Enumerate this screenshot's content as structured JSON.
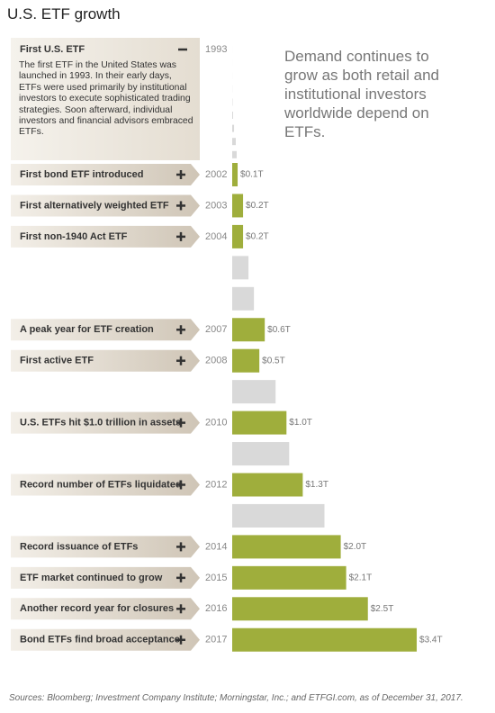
{
  "chart_data": {
    "type": "bar",
    "title": "U.S. ETF growth",
    "headline": "Demand continues to grow as both retail and institutional investors worldwide depend on ETFs.",
    "source": "Sources: Bloomberg; Investment Company Institute; Morningstar, Inc.; and ETFGI.com, as of December 31, 2017.",
    "categories": [
      "1993",
      null,
      null,
      null,
      null,
      null,
      null,
      null,
      null,
      "2002",
      "2003",
      "2004",
      null,
      null,
      "2007",
      "2008",
      null,
      "2010",
      null,
      "2012",
      null,
      "2014",
      "2015",
      "2016",
      "2017"
    ],
    "values": [
      0.0008,
      0.0004,
      0.001,
      0.002,
      0.007,
      0.016,
      0.034,
      0.066,
      0.083,
      0.1,
      0.2,
      0.2,
      0.3,
      0.4,
      0.6,
      0.5,
      0.8,
      1.0,
      1.05,
      1.3,
      1.7,
      2.0,
      2.1,
      2.5,
      3.4
    ],
    "value_labels": [
      null,
      null,
      null,
      null,
      null,
      null,
      null,
      null,
      null,
      "$0.1T",
      "$0.2T",
      "$0.2T",
      null,
      null,
      "$0.6T",
      "$0.5T",
      null,
      "$1.0T",
      null,
      "$1.3T",
      null,
      "$2.0T",
      "$2.1T",
      "$2.5T",
      "$3.4T"
    ],
    "colors": [
      "#d9d9d9",
      "#d9d9d9",
      "#d9d9d9",
      "#d9d9d9",
      "#d9d9d9",
      "#d9d9d9",
      "#d9d9d9",
      "#d9d9d9",
      "#d9d9d9",
      "#9fae3c",
      "#9fae3c",
      "#9fae3c",
      "#d9d9d9",
      "#d9d9d9",
      "#9fae3c",
      "#9fae3c",
      "#d9d9d9",
      "#9fae3c",
      "#d9d9d9",
      "#9fae3c",
      "#d9d9d9",
      "#9fae3c",
      "#9fae3c",
      "#9fae3c",
      "#9fae3c"
    ],
    "milestones": [
      {
        "title": "First U.S. ETF",
        "text": "The first ETF in the United States was launched in 1993. In their early days, ETFs were used primarily by institutional investors to execute sophisticated trading strategies. Soon afterward, individual investors and financial advisors embraced ETFs."
      },
      null,
      null,
      null,
      null,
      null,
      null,
      null,
      null,
      "First bond ETF introduced",
      "First alternatively weighted ETF",
      "First non-1940 Act ETF",
      null,
      null,
      "A peak year for ETF creation",
      "First active ETF",
      null,
      "U.S. ETFs hit $1.0 trillion in assets",
      null,
      "Record number of ETFs liquidated",
      null,
      "Record issuance of ETFs",
      "ETF market continued to grow",
      "Another record year for closures",
      "Bond ETFs find broad acceptance"
    ]
  }
}
